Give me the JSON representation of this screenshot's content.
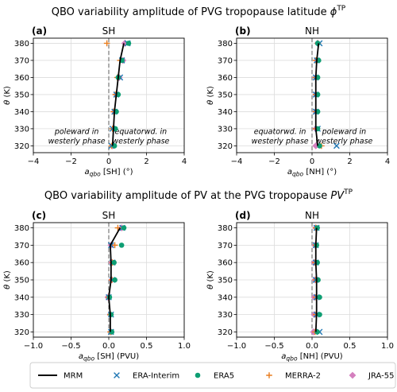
{
  "suptitles": [
    {
      "text": "QBO variability amplitude of PVG tropopause latitude ",
      "sym": "ϕ",
      "sup": "TP"
    },
    {
      "text": "QBO variability amplitude of PV at the PVG tropopause ",
      "sym": "PV",
      "sup": "TP"
    }
  ],
  "legend": {
    "entries": [
      {
        "label": "MRM",
        "marker": "line",
        "color": "#000000"
      },
      {
        "label": "ERA-Interim",
        "marker": "x",
        "color": "#1f77b4"
      },
      {
        "label": "ERA5",
        "marker": "circle",
        "color": "#0e9e73"
      },
      {
        "label": "MERRA-2",
        "marker": "plus",
        "color": "#e87d1e"
      },
      {
        "label": "JRA-55",
        "marker": "diamond",
        "color": "#d47fbe"
      }
    ]
  },
  "chart_data": [
    {
      "type": "scatter",
      "panel_label": "(a)",
      "title": "SH",
      "xlabel_main": "a",
      "xlabel_sub": "qbo",
      "xlabel_rest": " [SH] (°)",
      "ylabel": "θ (K)",
      "xlim": [
        -4,
        4
      ],
      "ylim": [
        316,
        383
      ],
      "xticks": [
        -4,
        -2,
        0,
        2,
        4
      ],
      "yticks": [
        320,
        330,
        340,
        350,
        360,
        370,
        380
      ],
      "grid": true,
      "zero_line": true,
      "annotations": [
        {
          "lines": [
            "poleward in",
            "westerly phase"
          ],
          "x": -1.7,
          "y": 325
        },
        {
          "lines": [
            "equatorwd. in",
            "westerly phase"
          ],
          "x": 1.7,
          "y": 325
        }
      ],
      "y": [
        320,
        330,
        340,
        350,
        360,
        370,
        380
      ],
      "series": [
        {
          "name": "MRM",
          "marker": "line",
          "values": [
            0.2,
            0.25,
            0.3,
            0.4,
            0.5,
            0.6,
            0.8
          ]
        },
        {
          "name": "ERA-Interim",
          "marker": "x",
          "values": [
            0.15,
            0.2,
            0.3,
            0.4,
            0.6,
            0.7,
            1.0
          ]
        },
        {
          "name": "ERA5",
          "marker": "circle",
          "values": [
            0.3,
            0.35,
            0.4,
            0.5,
            0.5,
            0.7,
            1.05
          ]
        },
        {
          "name": "MERRA-2",
          "marker": "plus",
          "values": [
            0.15,
            0.2,
            0.25,
            0.35,
            0.45,
            0.6,
            -0.1
          ]
        },
        {
          "name": "JRA-55",
          "marker": "diamond",
          "values": [
            0.2,
            0.25,
            0.3,
            0.4,
            0.55,
            0.75,
            0.85
          ]
        }
      ]
    },
    {
      "type": "scatter",
      "panel_label": "(b)",
      "title": "NH",
      "xlabel_main": "a",
      "xlabel_sub": "qbo",
      "xlabel_rest": " [NH] (°)",
      "ylabel": "θ (K)",
      "xlim": [
        -4,
        4
      ],
      "ylim": [
        316,
        383
      ],
      "xticks": [
        -4,
        -2,
        0,
        2,
        4
      ],
      "yticks": [
        320,
        330,
        340,
        350,
        360,
        370,
        380
      ],
      "grid": true,
      "zero_line": true,
      "annotations": [
        {
          "lines": [
            "equatorwd. in",
            "westerly phase"
          ],
          "x": -1.7,
          "y": 325
        },
        {
          "lines": [
            "poleward in",
            "westerly phase"
          ],
          "x": 1.7,
          "y": 325
        }
      ],
      "y": [
        320,
        330,
        340,
        350,
        360,
        370,
        380
      ],
      "series": [
        {
          "name": "MRM",
          "marker": "line",
          "values": [
            0.3,
            0.2,
            0.2,
            0.2,
            0.2,
            0.25,
            0.35
          ]
        },
        {
          "name": "ERA-Interim",
          "marker": "x",
          "values": [
            1.3,
            0.3,
            0.2,
            0.2,
            0.2,
            0.25,
            0.4
          ]
        },
        {
          "name": "ERA5",
          "marker": "circle",
          "values": [
            0.4,
            0.3,
            0.3,
            0.3,
            0.3,
            0.35,
            0.3
          ]
        },
        {
          "name": "MERRA-2",
          "marker": "plus",
          "values": [
            0.5,
            0.2,
            0.2,
            0.2,
            0.2,
            0.2,
            0.3
          ]
        },
        {
          "name": "JRA-55",
          "marker": "diamond",
          "values": [
            0.2,
            0.2,
            0.2,
            0.2,
            0.2,
            0.25,
            0.3
          ]
        }
      ]
    },
    {
      "type": "scatter",
      "panel_label": "(c)",
      "title": "SH",
      "xlabel_main": "a",
      "xlabel_sub": "qbo",
      "xlabel_rest": " [SH] (PVU)",
      "ylabel": "θ (K)",
      "xlim": [
        -1.0,
        1.0
      ],
      "ylim": [
        317,
        383
      ],
      "xticks": [
        -1.0,
        -0.5,
        0.0,
        0.5,
        1.0
      ],
      "xtick_labels": [
        "−1.0",
        "−0.5",
        "0.0",
        "0.5",
        "1.0"
      ],
      "yticks": [
        320,
        330,
        340,
        350,
        360,
        370,
        380
      ],
      "grid": true,
      "zero_line": true,
      "annotations": [],
      "y": [
        320,
        330,
        340,
        350,
        360,
        370,
        380
      ],
      "series": [
        {
          "name": "MRM",
          "marker": "line",
          "values": [
            0.02,
            0.02,
            0.0,
            0.03,
            0.03,
            0.02,
            0.15
          ]
        },
        {
          "name": "ERA-Interim",
          "marker": "x",
          "values": [
            0.03,
            0.03,
            0.0,
            0.05,
            0.05,
            0.03,
            0.18
          ]
        },
        {
          "name": "ERA5",
          "marker": "circle",
          "values": [
            0.04,
            0.03,
            0.01,
            0.08,
            0.07,
            0.17,
            0.2
          ]
        },
        {
          "name": "MERRA-2",
          "marker": "plus",
          "values": [
            0.02,
            0.02,
            0.0,
            0.04,
            0.05,
            0.08,
            0.12
          ]
        },
        {
          "name": "JRA-55",
          "marker": "diamond",
          "values": [
            0.03,
            0.02,
            -0.01,
            0.04,
            0.04,
            0.03,
            0.17
          ]
        }
      ]
    },
    {
      "type": "scatter",
      "panel_label": "(d)",
      "title": "NH",
      "xlabel_main": "a",
      "xlabel_sub": "qbo",
      "xlabel_rest": " [NH] (PVU)",
      "ylabel": "θ (K)",
      "xlim": [
        -1.0,
        1.0
      ],
      "ylim": [
        317,
        383
      ],
      "xticks": [
        -1.0,
        -0.5,
        0.0,
        0.5,
        1.0
      ],
      "xtick_labels": [
        "−1.0",
        "−0.5",
        "0.0",
        "0.5",
        "1.0"
      ],
      "yticks": [
        320,
        330,
        340,
        350,
        360,
        370,
        380
      ],
      "grid": true,
      "zero_line": true,
      "annotations": [],
      "y": [
        320,
        330,
        340,
        350,
        360,
        370,
        380
      ],
      "series": [
        {
          "name": "MRM",
          "marker": "line",
          "values": [
            0.05,
            0.06,
            0.06,
            0.06,
            0.05,
            0.05,
            0.06
          ]
        },
        {
          "name": "ERA-Interim",
          "marker": "x",
          "values": [
            0.1,
            0.06,
            0.06,
            0.05,
            0.05,
            0.05,
            0.06
          ]
        },
        {
          "name": "ERA5",
          "marker": "circle",
          "values": [
            0.07,
            0.1,
            0.1,
            0.08,
            0.07,
            0.06,
            0.07
          ]
        },
        {
          "name": "MERRA-2",
          "marker": "plus",
          "values": [
            0.04,
            0.05,
            0.05,
            0.05,
            0.04,
            0.05,
            0.05
          ]
        },
        {
          "name": "JRA-55",
          "marker": "diamond",
          "values": [
            0.02,
            0.03,
            0.03,
            0.04,
            0.03,
            0.04,
            0.05
          ]
        }
      ]
    }
  ]
}
